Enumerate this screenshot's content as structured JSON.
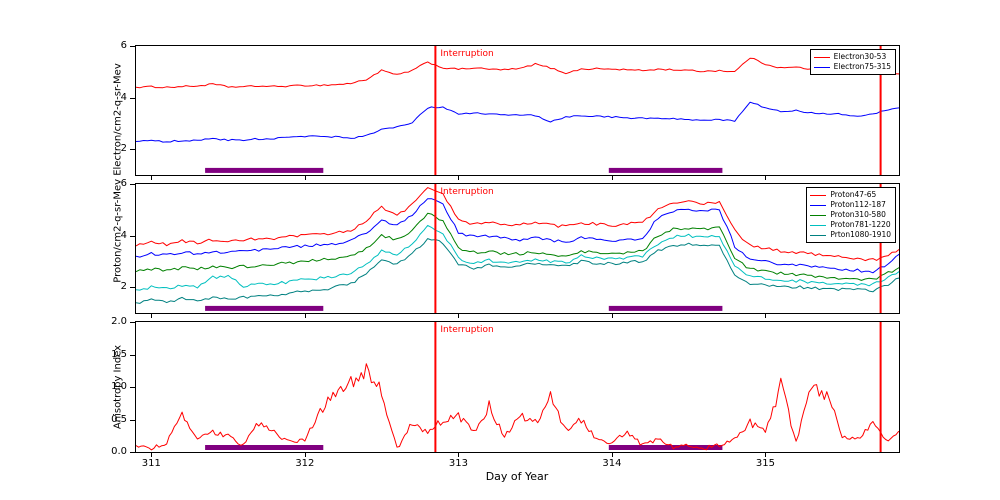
{
  "figure": {
    "xlabel": "Day of Year",
    "ylabel_top": "Proton/cm2-q-sr-Mev Electron/cm2-q-sr-Mev",
    "ylabel_bottom": "Anisotropy Index",
    "interruption_label": "Interruption",
    "colors": {
      "vline": "#ff0000",
      "band": "#800080",
      "interruption_text": "#ff0000",
      "axis": "#000000"
    }
  },
  "chart_data": [
    {
      "id": "electron-flux",
      "type": "line",
      "xlim": [
        310.9,
        315.87
      ],
      "ylim": [
        1,
        6
      ],
      "x0": 310.9,
      "dx": 0.1,
      "band_y": 1.18,
      "legend_visible": true,
      "show_xtick_labels": false,
      "yticks": [
        {
          "v": 2,
          "label": "2"
        },
        {
          "v": 4,
          "label": "4"
        },
        {
          "v": 6,
          "label": "6"
        }
      ],
      "xticks": [
        {
          "v": 311,
          "label": "311"
        },
        {
          "v": 312,
          "label": "312"
        },
        {
          "v": 313,
          "label": "313"
        },
        {
          "v": 314,
          "label": "314"
        },
        {
          "v": 315,
          "label": "315"
        }
      ],
      "vlines": [
        312.85,
        315.75
      ],
      "interruption_at": 312.85,
      "bands": [
        {
          "from": 311.35,
          "to": 312.12
        },
        {
          "from": 313.98,
          "to": 314.72
        }
      ],
      "series": [
        {
          "name": "Electron30-53",
          "color": "#ff0000",
          "noise": 0.03,
          "values": [
            4.4,
            4.42,
            4.4,
            4.43,
            4.45,
            4.52,
            4.42,
            4.42,
            4.45,
            4.43,
            4.45,
            4.47,
            4.48,
            4.5,
            4.55,
            4.7,
            5.05,
            4.88,
            5.05,
            5.38,
            5.15,
            5.1,
            5.15,
            5.1,
            5.08,
            5.12,
            5.3,
            5.15,
            4.95,
            5.1,
            5.12,
            5.1,
            5.08,
            5.05,
            5.1,
            5.08,
            5.05,
            5.02,
            5.05,
            5.0,
            5.55,
            5.3,
            5.15,
            5.18,
            5.1,
            5.05,
            5.0,
            4.95,
            4.92,
            4.9,
            4.95
          ]
        },
        {
          "name": "Electron75-315",
          "color": "#0000ff",
          "noise": 0.03,
          "values": [
            2.3,
            2.32,
            2.3,
            2.33,
            2.35,
            2.42,
            2.35,
            2.36,
            2.4,
            2.42,
            2.45,
            2.48,
            2.5,
            2.48,
            2.42,
            2.55,
            2.75,
            2.85,
            3.05,
            3.6,
            3.65,
            3.35,
            3.4,
            3.38,
            3.35,
            3.32,
            3.3,
            3.05,
            3.25,
            3.3,
            3.28,
            3.25,
            3.22,
            3.2,
            3.22,
            3.18,
            3.15,
            3.12,
            3.15,
            3.1,
            3.85,
            3.6,
            3.45,
            3.5,
            3.4,
            3.38,
            3.35,
            3.3,
            3.35,
            3.55,
            3.65
          ]
        }
      ]
    },
    {
      "id": "proton-flux",
      "type": "line",
      "xlim": [
        310.9,
        315.87
      ],
      "ylim": [
        1,
        6
      ],
      "x0": 310.9,
      "dx": 0.1,
      "band_y": 1.18,
      "legend_visible": true,
      "show_xtick_labels": false,
      "yticks": [
        {
          "v": 2,
          "label": "2"
        },
        {
          "v": 4,
          "label": "4"
        },
        {
          "v": 6,
          "label": "6"
        }
      ],
      "xticks": [
        {
          "v": 311,
          "label": "311"
        },
        {
          "v": 312,
          "label": "312"
        },
        {
          "v": 313,
          "label": "313"
        },
        {
          "v": 314,
          "label": "314"
        },
        {
          "v": 315,
          "label": "315"
        }
      ],
      "vlines": [
        312.85,
        315.75
      ],
      "interruption_at": 312.85,
      "bands": [
        {
          "from": 311.35,
          "to": 312.12
        },
        {
          "from": 313.98,
          "to": 314.72
        }
      ],
      "series": [
        {
          "name": "Proton47-65",
          "color": "#ff0000",
          "noise": 0.06,
          "values": [
            3.6,
            3.75,
            3.65,
            3.8,
            3.7,
            3.85,
            3.75,
            3.8,
            3.9,
            3.85,
            3.95,
            4.0,
            4.05,
            4.1,
            4.2,
            4.6,
            5.1,
            4.8,
            5.2,
            5.85,
            5.6,
            4.6,
            4.45,
            4.5,
            4.4,
            4.45,
            4.5,
            4.4,
            4.35,
            4.5,
            4.45,
            4.4,
            4.45,
            4.5,
            5.0,
            5.25,
            5.3,
            5.25,
            5.3,
            4.2,
            3.6,
            3.5,
            3.4,
            3.35,
            3.3,
            3.25,
            3.2,
            3.1,
            3.05,
            3.2,
            3.6
          ]
        },
        {
          "name": "Proton112-187",
          "color": "#0000ff",
          "noise": 0.06,
          "values": [
            3.2,
            3.3,
            3.25,
            3.35,
            3.3,
            3.4,
            3.35,
            3.4,
            3.45,
            3.5,
            3.55,
            3.6,
            3.65,
            3.7,
            3.8,
            4.1,
            4.6,
            4.4,
            4.8,
            5.45,
            5.2,
            4.1,
            3.95,
            4.0,
            3.9,
            3.85,
            3.9,
            3.8,
            3.75,
            3.9,
            3.85,
            3.8,
            3.85,
            3.9,
            4.7,
            4.95,
            5.0,
            4.95,
            5.0,
            3.6,
            3.1,
            3.0,
            2.9,
            2.85,
            2.8,
            2.75,
            2.7,
            2.65,
            2.6,
            2.9,
            3.5
          ]
        },
        {
          "name": "Proton310-580",
          "color": "#008000",
          "noise": 0.06,
          "values": [
            2.6,
            2.7,
            2.65,
            2.75,
            2.7,
            2.8,
            2.75,
            2.8,
            2.85,
            2.9,
            2.95,
            3.0,
            3.05,
            3.1,
            3.2,
            3.5,
            4.0,
            3.85,
            4.2,
            4.85,
            4.6,
            3.5,
            3.35,
            3.4,
            3.3,
            3.3,
            3.35,
            3.25,
            3.2,
            3.4,
            3.35,
            3.3,
            3.35,
            3.4,
            4.0,
            4.25,
            4.3,
            4.25,
            4.3,
            3.1,
            2.7,
            2.6,
            2.55,
            2.5,
            2.45,
            2.4,
            2.35,
            2.3,
            2.3,
            2.55,
            2.9
          ]
        },
        {
          "name": "Proton781-1220",
          "color": "#00bfbf",
          "noise": 0.06,
          "values": [
            1.9,
            2.0,
            1.95,
            2.05,
            2.0,
            2.4,
            2.4,
            2.05,
            2.1,
            2.15,
            2.2,
            2.3,
            2.35,
            2.4,
            2.55,
            2.9,
            3.4,
            3.3,
            3.7,
            4.35,
            4.1,
            3.1,
            2.95,
            3.05,
            2.95,
            3.0,
            3.05,
            3.0,
            2.95,
            3.2,
            3.15,
            3.1,
            3.15,
            3.2,
            3.7,
            3.95,
            4.0,
            3.95,
            4.0,
            2.8,
            2.4,
            2.35,
            2.3,
            2.25,
            2.2,
            2.18,
            2.15,
            2.12,
            2.1,
            2.35,
            2.7
          ]
        },
        {
          "name": "Prton1080-1910",
          "color": "#008080",
          "noise": 0.06,
          "values": [
            1.4,
            1.5,
            1.45,
            1.55,
            1.5,
            1.6,
            1.55,
            1.6,
            1.65,
            1.7,
            1.75,
            1.85,
            1.9,
            2.0,
            2.15,
            2.5,
            3.0,
            2.9,
            3.3,
            3.9,
            3.7,
            2.85,
            2.75,
            2.85,
            2.8,
            2.85,
            2.9,
            2.85,
            2.8,
            3.0,
            2.95,
            2.9,
            2.95,
            3.0,
            3.4,
            3.6,
            3.65,
            3.6,
            3.65,
            2.5,
            2.15,
            2.1,
            2.05,
            2.0,
            1.98,
            1.95,
            1.92,
            1.9,
            1.88,
            2.1,
            2.45
          ]
        }
      ]
    },
    {
      "id": "anisotropy",
      "type": "line",
      "xlim": [
        310.9,
        315.87
      ],
      "ylim": [
        0,
        2
      ],
      "x0": 310.9,
      "dx": 0.1,
      "band_y": 0.07,
      "legend_visible": false,
      "show_xtick_labels": true,
      "yticks": [
        {
          "v": 0,
          "label": "0.0"
        },
        {
          "v": 0.5,
          "label": "0.5"
        },
        {
          "v": 1,
          "label": "1.0"
        },
        {
          "v": 1.5,
          "label": "1.5"
        },
        {
          "v": 2,
          "label": "2.0"
        }
      ],
      "xticks": [
        {
          "v": 311,
          "label": "311"
        },
        {
          "v": 312,
          "label": "312"
        },
        {
          "v": 313,
          "label": "313"
        },
        {
          "v": 314,
          "label": "314"
        },
        {
          "v": 315,
          "label": "315"
        }
      ],
      "vlines": [
        312.85,
        315.75
      ],
      "interruption_at": 312.85,
      "bands": [
        {
          "from": 311.35,
          "to": 312.12
        },
        {
          "from": 313.98,
          "to": 314.72
        }
      ],
      "series": [
        {
          "name": "AnisotropyIndex",
          "color": "#ff0000",
          "noise": 0.13,
          "values": [
            0.1,
            0.05,
            0.15,
            0.55,
            0.2,
            0.3,
            0.25,
            0.1,
            0.45,
            0.3,
            0.15,
            0.2,
            0.6,
            0.95,
            1.1,
            1.25,
            0.9,
            0.05,
            0.45,
            0.3,
            0.5,
            0.55,
            0.3,
            0.7,
            0.25,
            0.55,
            0.45,
            0.85,
            0.35,
            0.5,
            0.2,
            0.15,
            0.3,
            0.1,
            0.2,
            0.08,
            0.12,
            0.06,
            0.1,
            0.2,
            0.45,
            0.3,
            1.05,
            0.15,
            1.0,
            0.9,
            0.25,
            0.2,
            0.45,
            0.15,
            0.35
          ]
        }
      ]
    }
  ]
}
